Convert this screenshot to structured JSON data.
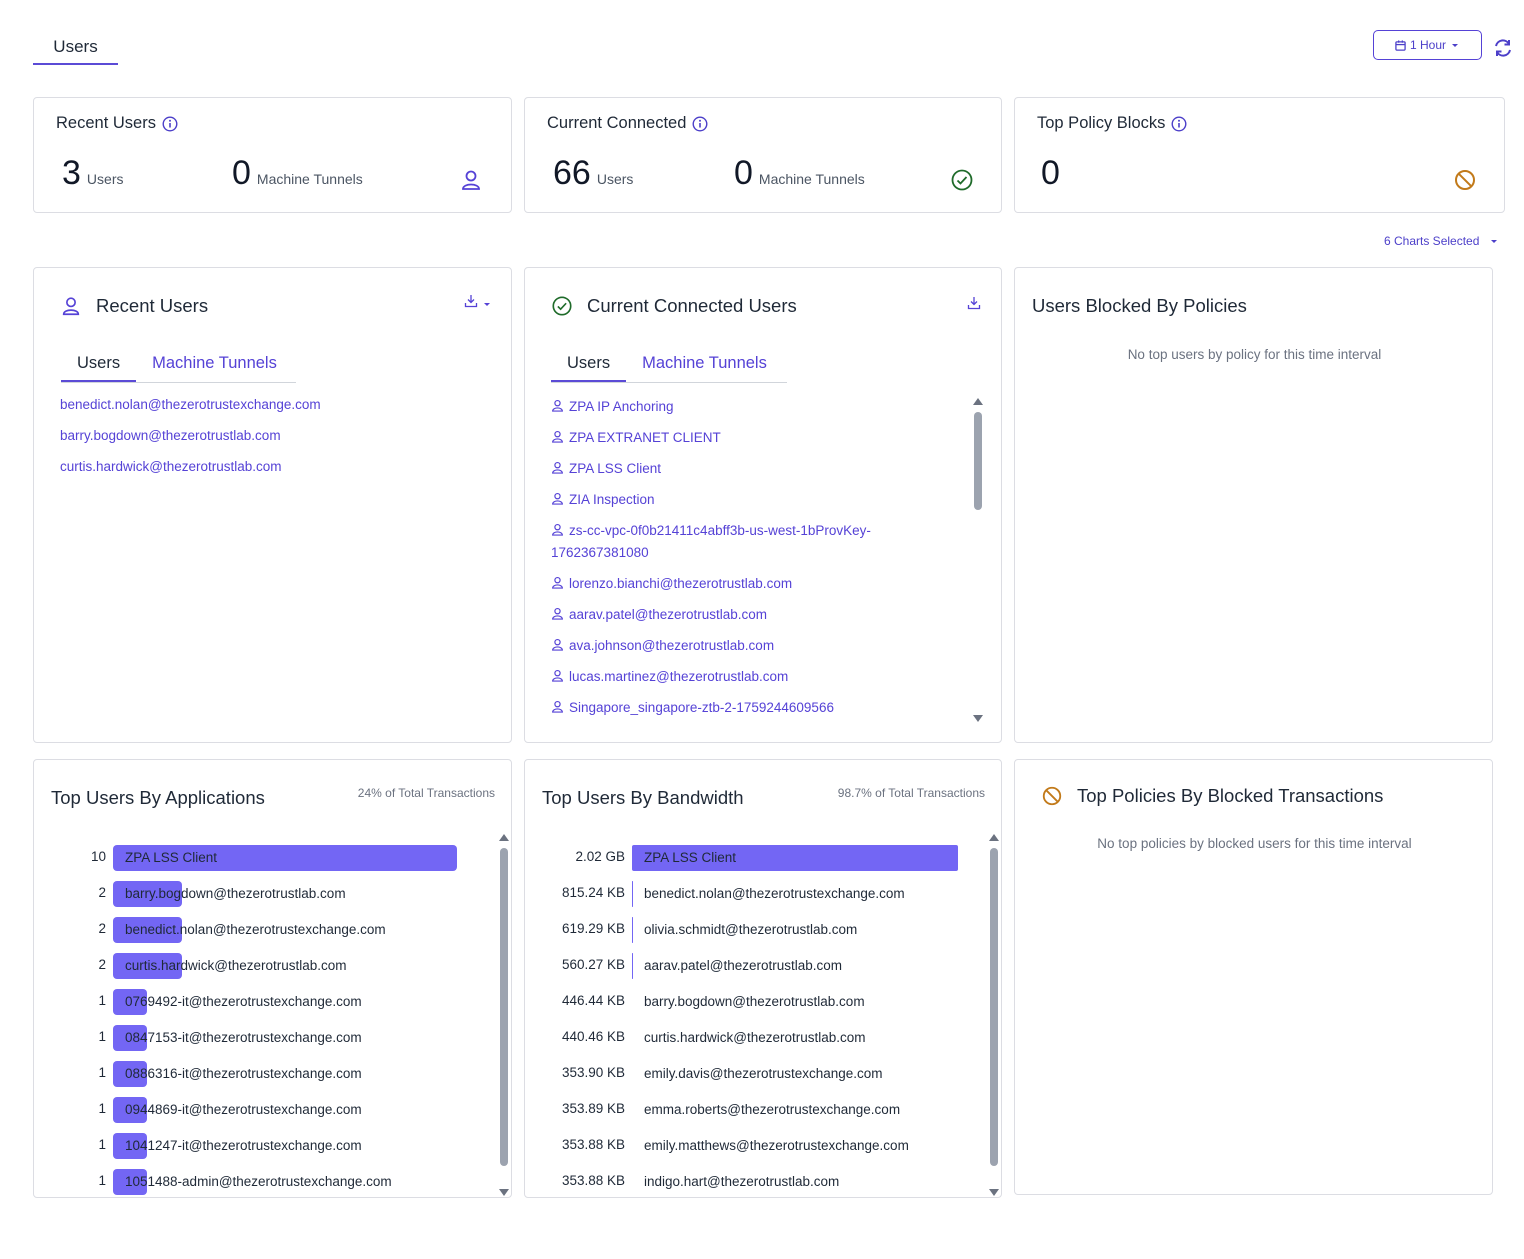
{
  "page_tab": "Users",
  "time_filter": {
    "label": "1 Hour"
  },
  "summary": {
    "recent_users": {
      "title": "Recent Users",
      "users_count": "3",
      "users_label": "Users",
      "tunnels_count": "0",
      "tunnels_label": "Machine Tunnels"
    },
    "current_connected": {
      "title": "Current Connected",
      "users_count": "66",
      "users_label": "Users",
      "tunnels_count": "0",
      "tunnels_label": "Machine Tunnels"
    },
    "top_policy_blocks": {
      "title": "Top Policy Blocks",
      "count": "0"
    }
  },
  "charts_selected": "6 Charts Selected",
  "recent_users_panel": {
    "title": "Recent Users",
    "tabs": [
      "Users",
      "Machine Tunnels"
    ],
    "items": [
      "benedict.nolan@thezerotrustexchange.com",
      "barry.bogdown@thezerotrustlab.com",
      "curtis.hardwick@thezerotrustlab.com"
    ]
  },
  "connected_panel": {
    "title": "Current Connected Users",
    "tabs": [
      "Users",
      "Machine Tunnels"
    ],
    "items": [
      "ZPA IP Anchoring",
      "ZPA EXTRANET CLIENT",
      "ZPA LSS Client",
      "ZIA Inspection",
      "zs-cc-vpc-0f0b21411c4abff3b-us-west-1bProvKey-1762367381080",
      "lorenzo.bianchi@thezerotrustlab.com",
      "aarav.patel@thezerotrustlab.com",
      "ava.johnson@thezerotrustlab.com",
      "lucas.martinez@thezerotrustlab.com",
      "Singapore_singapore-ztb-2-1759244609566"
    ]
  },
  "blocked_panel": {
    "title": "Users Blocked By Policies",
    "empty": "No top users by policy for this time interval"
  },
  "top_apps_panel": {
    "title": "Top Users By Applications",
    "note": "24% of Total Transactions",
    "max": 10,
    "rows": [
      {
        "value": 10,
        "display": "10",
        "label": "ZPA LSS Client"
      },
      {
        "value": 2,
        "display": "2",
        "label": "barry.bogdown@thezerotrustlab.com"
      },
      {
        "value": 2,
        "display": "2",
        "label": "benedict.nolan@thezerotrustexchange.com"
      },
      {
        "value": 2,
        "display": "2",
        "label": "curtis.hardwick@thezerotrustlab.com"
      },
      {
        "value": 1,
        "display": "1",
        "label": "0769492-it@thezerotrustexchange.com"
      },
      {
        "value": 1,
        "display": "1",
        "label": "0847153-it@thezerotrustexchange.com"
      },
      {
        "value": 1,
        "display": "1",
        "label": "0886316-it@thezerotrustexchange.com"
      },
      {
        "value": 1,
        "display": "1",
        "label": "0944869-it@thezerotrustexchange.com"
      },
      {
        "value": 1,
        "display": "1",
        "label": "1041247-it@thezerotrustexchange.com"
      },
      {
        "value": 1,
        "display": "1",
        "label": "1051488-admin@thezerotrustexchange.com"
      }
    ]
  },
  "bandwidth_panel": {
    "title": "Top Users By Bandwidth",
    "note": "98.7% of Total Transactions",
    "rows": [
      {
        "value_kb": 2117999,
        "display": "2.02 GB",
        "label": "ZPA LSS Client"
      },
      {
        "value_kb": 815.24,
        "display": "815.24 KB",
        "label": "benedict.nolan@thezerotrustexchange.com"
      },
      {
        "value_kb": 619.29,
        "display": "619.29 KB",
        "label": "olivia.schmidt@thezerotrustlab.com"
      },
      {
        "value_kb": 560.27,
        "display": "560.27 KB",
        "label": "aarav.patel@thezerotrustlab.com"
      },
      {
        "value_kb": 446.44,
        "display": "446.44 KB",
        "label": "barry.bogdown@thezerotrustlab.com"
      },
      {
        "value_kb": 440.46,
        "display": "440.46 KB",
        "label": "curtis.hardwick@thezerotrustlab.com"
      },
      {
        "value_kb": 353.9,
        "display": "353.90 KB",
        "label": "emily.davis@thezerotrustexchange.com"
      },
      {
        "value_kb": 353.89,
        "display": "353.89 KB",
        "label": "emma.roberts@thezerotrustexchange.com"
      },
      {
        "value_kb": 353.88,
        "display": "353.88 KB",
        "label": "emily.matthews@thezerotrustexchange.com"
      },
      {
        "value_kb": 353.88,
        "display": "353.88 KB",
        "label": "indigo.hart@thezerotrustlab.com"
      }
    ]
  },
  "policies_panel": {
    "title": "Top Policies By Blocked Transactions",
    "empty": "No top policies by blocked users for this time interval"
  },
  "colors": {
    "accent": "#5542d6",
    "bar": "#7366f4",
    "success": "#1f6b2a",
    "blocked": "#c27a1a"
  }
}
